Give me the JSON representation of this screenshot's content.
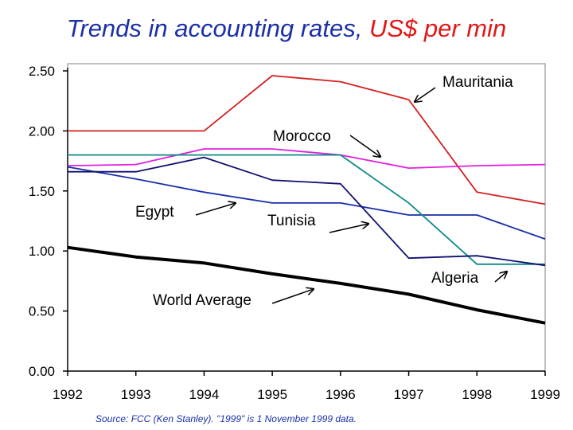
{
  "title": {
    "part1": "Trends in accounting rates, ",
    "part2": "US$ per min"
  },
  "source_note": "Source: FCC (Ken Stanley). \"1999\" is 1 November 1999 data.",
  "chart_data": {
    "type": "line",
    "title": "Trends in accounting rates, US$ per min",
    "xlabel": "",
    "ylabel": "",
    "x": [
      1992,
      1993,
      1994,
      1995,
      1996,
      1997,
      1998,
      1999
    ],
    "x_ticks": [
      "1992",
      "1993",
      "1994",
      "1995",
      "1996",
      "1997",
      "1998",
      "1999"
    ],
    "y_ticks": [
      "0.00",
      "0.50",
      "1.00",
      "1.50",
      "2.00",
      "2.50"
    ],
    "ylim": [
      0,
      2.5
    ],
    "grid": false,
    "legend": "none (direct labels with arrows)",
    "series": [
      {
        "name": "Mauritania",
        "color": "#d42020",
        "values": [
          2.0,
          2.0,
          2.0,
          2.46,
          2.41,
          2.26,
          1.49,
          1.39
        ]
      },
      {
        "name": "Morocco",
        "color": "#e020e0",
        "values": [
          1.71,
          1.72,
          1.85,
          1.85,
          1.8,
          1.69,
          1.71,
          1.72
        ]
      },
      {
        "name": "Egypt",
        "color": "#1a2fa8",
        "values": [
          1.7,
          1.6,
          1.49,
          1.4,
          1.4,
          1.3,
          1.3,
          1.1
        ]
      },
      {
        "name": "Tunisia",
        "color": "#108888",
        "values": [
          1.8,
          1.8,
          1.8,
          1.8,
          1.8,
          1.4,
          0.89,
          0.89
        ]
      },
      {
        "name": "Algeria",
        "color": "#101070",
        "values": [
          1.66,
          1.66,
          1.78,
          1.59,
          1.56,
          0.94,
          0.96,
          0.88
        ]
      },
      {
        "name": "World Average",
        "color": "#000000",
        "values": [
          1.03,
          0.95,
          0.9,
          0.81,
          0.73,
          0.64,
          0.51,
          0.4
        ]
      }
    ]
  }
}
